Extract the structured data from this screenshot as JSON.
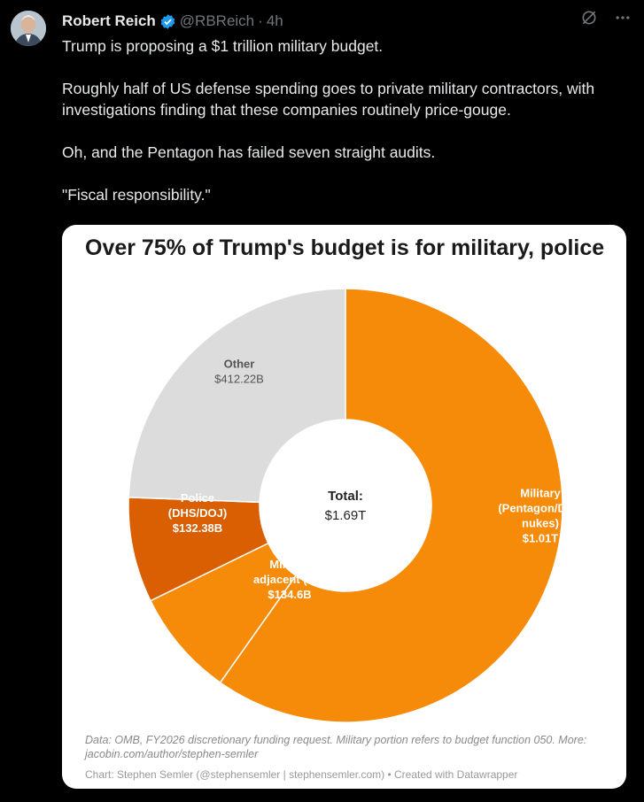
{
  "tweet": {
    "author_name": "Robert Reich",
    "handle": "@RBReich",
    "separator": "·",
    "time": "4h",
    "paragraphs": [
      "Trump is proposing a $1 trillion military budget.",
      "Roughly half of US defense spending goes to private military contractors, with investigations finding that these companies routinely price-gouge.",
      "Oh, and the Pentagon has failed seven straight audits.",
      "\"Fiscal responsibility.\""
    ],
    "verified_color": "#1d9bf0"
  },
  "chart_data": {
    "type": "pie",
    "title": "Over 75% of Trump's budget is for military, police",
    "center_label": "Total:",
    "center_value": "$1.69T",
    "slices": [
      {
        "name": "Military (Pentagon/DOE nukes)",
        "label_lines": [
          "Military",
          "(Pentagon/DOE",
          "nukes)",
          "$1.01T"
        ],
        "value": 1010,
        "color": "#f68b0a"
      },
      {
        "name": "Military adjacent (VA)",
        "label_lines": [
          "Military",
          "adjacent (VA)",
          "$134.6B"
        ],
        "value": 134.6,
        "color": "#f68b0a"
      },
      {
        "name": "Police (DHS/DOJ)",
        "label_lines": [
          "Police",
          "(DHS/DOJ)",
          "$132.38B"
        ],
        "value": 132.38,
        "color": "#d95f02"
      },
      {
        "name": "Other",
        "label_lines": [
          "Other",
          "$412.22B"
        ],
        "value": 412.22,
        "color": "#dcdcdc"
      }
    ],
    "notes": "Data: OMB, FY2026 discretionary funding request. Military portion refers to budget function 050. More: jacobin.com/author/stephen-semler",
    "credit": "Chart: Stephen Semler (@stephensemler | stephensemler.com) • Created with Datawrapper"
  }
}
